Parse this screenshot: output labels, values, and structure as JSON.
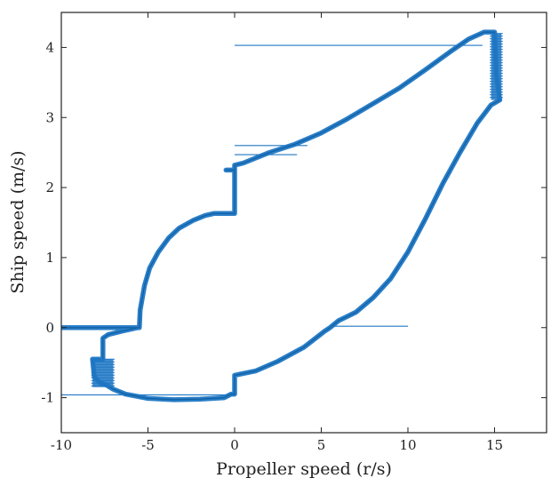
{
  "chart_data": {
    "type": "line",
    "title": "",
    "xlabel": "Propeller speed (r/s)",
    "ylabel": "Ship speed (m/s)",
    "xlim": [
      -10,
      18
    ],
    "ylim": [
      -1.5,
      4.5
    ],
    "x_ticks": [
      -10,
      -5,
      0,
      5,
      10,
      15
    ],
    "y_ticks": [
      -1,
      0,
      1,
      2,
      3,
      4
    ],
    "grid": false,
    "legend": "none",
    "colors": {
      "series": "#1f77c4",
      "axis": "#222222"
    },
    "series": [
      {
        "points": [
          [
            -10,
            0.0
          ],
          [
            -5.6,
            0.0
          ],
          [
            -5.5,
            0.0
          ],
          [
            -5.45,
            0.25
          ],
          [
            -5.2,
            0.6
          ],
          [
            -4.9,
            0.85
          ],
          [
            -4.4,
            1.08
          ],
          [
            -3.8,
            1.28
          ],
          [
            -3.2,
            1.42
          ],
          [
            -2.4,
            1.53
          ],
          [
            -1.7,
            1.6
          ],
          [
            -1.2,
            1.63
          ],
          [
            0.0,
            1.63
          ],
          [
            0.0,
            2.25
          ],
          [
            -0.5,
            2.25
          ],
          [
            0.0,
            2.25
          ],
          [
            0.0,
            2.32
          ],
          [
            0.5,
            2.35
          ],
          [
            2.0,
            2.5
          ],
          [
            3.5,
            2.62
          ],
          [
            5.0,
            2.78
          ],
          [
            6.5,
            2.98
          ],
          [
            8.0,
            3.2
          ],
          [
            9.5,
            3.42
          ],
          [
            11.0,
            3.68
          ],
          [
            12.5,
            3.95
          ],
          [
            13.5,
            4.12
          ],
          [
            14.4,
            4.22
          ],
          [
            15.0,
            4.22
          ],
          [
            15.1,
            3.6
          ],
          [
            15.3,
            3.25
          ],
          [
            14.8,
            3.18
          ],
          [
            14.0,
            2.92
          ],
          [
            13.0,
            2.5
          ],
          [
            12.0,
            2.05
          ],
          [
            11.0,
            1.55
          ],
          [
            10.0,
            1.08
          ],
          [
            9.0,
            0.7
          ],
          [
            8.0,
            0.43
          ],
          [
            7.0,
            0.22
          ],
          [
            6.0,
            0.1
          ],
          [
            5.5,
            0.0
          ],
          [
            5.2,
            -0.05
          ],
          [
            4.0,
            -0.28
          ],
          [
            2.5,
            -0.48
          ],
          [
            1.2,
            -0.62
          ],
          [
            0.2,
            -0.67
          ],
          [
            0.0,
            -0.68
          ],
          [
            0.0,
            -0.95
          ],
          [
            -0.2,
            -0.95
          ],
          [
            -0.6,
            -1.0
          ],
          [
            -2.0,
            -1.02
          ],
          [
            -3.5,
            -1.03
          ],
          [
            -5.0,
            -1.01
          ],
          [
            -6.3,
            -0.95
          ],
          [
            -7.0,
            -0.88
          ],
          [
            -7.4,
            -0.82
          ],
          [
            -7.8,
            -0.78
          ],
          [
            -8.1,
            -0.7
          ],
          [
            -8.2,
            -0.45
          ],
          [
            -7.6,
            -0.45
          ],
          [
            -7.6,
            -0.15
          ],
          [
            -7.3,
            -0.1
          ],
          [
            -6.5,
            -0.05
          ],
          [
            -5.6,
            0.0
          ]
        ]
      }
    ],
    "spikes": [
      {
        "x": [
          0,
          14.3
        ],
        "y": 4.03
      },
      {
        "x": [
          0,
          4.2
        ],
        "y": 2.6
      },
      {
        "x": [
          0,
          3.6
        ],
        "y": 2.47
      },
      {
        "x": [
          5.6,
          10.0
        ],
        "y": 0.02
      },
      {
        "x": [
          -0.5,
          0
        ],
        "y": 2.25
      },
      {
        "x": [
          -10,
          -5.5
        ],
        "y": 0.0
      },
      {
        "x": [
          -10,
          0
        ],
        "y": -0.96
      }
    ],
    "noise_bands": [
      {
        "x": [
          14.8,
          15.4
        ],
        "y": [
          3.25,
          4.2
        ]
      },
      {
        "x": [
          -8.2,
          -7.0
        ],
        "y": [
          -0.45,
          -0.85
        ]
      }
    ]
  }
}
